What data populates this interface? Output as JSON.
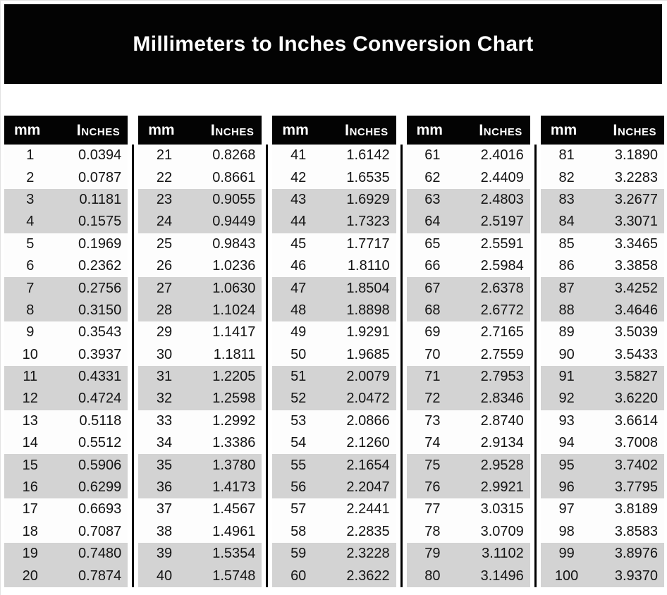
{
  "title": "Millimeters to Inches Conversion Chart",
  "header": {
    "mm_label": "mm",
    "inches_label": "Inches"
  },
  "colors": {
    "banner_bg": "#030303",
    "banner_text": "#ffffff",
    "header_bg": "#030303",
    "header_text": "#ffffff",
    "row_stripe": "#d3d3d3",
    "row_plain": "#fdfdfd",
    "divider": "#000000",
    "value_text": "#141414"
  },
  "chart_data": {
    "type": "table",
    "title": "Millimeters to Inches Conversion Chart",
    "columns": [
      "mm",
      "Inches"
    ],
    "layout": {
      "column_groups_count": 5,
      "rows_per_group": 20,
      "stripe_pattern": "alternating pairs shaded (rows 3-4, 7-8, 11-12, 15-16, 19-20 of each group)",
      "grid": "black vertical divider lines between column groups"
    },
    "column_groups": [
      {
        "rows": [
          [
            "1",
            "0.0394"
          ],
          [
            "2",
            "0.0787"
          ],
          [
            "3",
            "0.1181"
          ],
          [
            "4",
            "0.1575"
          ],
          [
            "5",
            "0.1969"
          ],
          [
            "6",
            "0.2362"
          ],
          [
            "7",
            "0.2756"
          ],
          [
            "8",
            "0.3150"
          ],
          [
            "9",
            "0.3543"
          ],
          [
            "10",
            "0.3937"
          ],
          [
            "11",
            "0.4331"
          ],
          [
            "12",
            "0.4724"
          ],
          [
            "13",
            "0.5118"
          ],
          [
            "14",
            "0.5512"
          ],
          [
            "15",
            "0.5906"
          ],
          [
            "16",
            "0.6299"
          ],
          [
            "17",
            "0.6693"
          ],
          [
            "18",
            "0.7087"
          ],
          [
            "19",
            "0.7480"
          ],
          [
            "20",
            "0.7874"
          ]
        ]
      },
      {
        "rows": [
          [
            "21",
            "0.8268"
          ],
          [
            "22",
            "0.8661"
          ],
          [
            "23",
            "0.9055"
          ],
          [
            "24",
            "0.9449"
          ],
          [
            "25",
            "0.9843"
          ],
          [
            "26",
            "1.0236"
          ],
          [
            "27",
            "1.0630"
          ],
          [
            "28",
            "1.1024"
          ],
          [
            "29",
            "1.1417"
          ],
          [
            "30",
            "1.1811"
          ],
          [
            "31",
            "1.2205"
          ],
          [
            "32",
            "1.2598"
          ],
          [
            "33",
            "1.2992"
          ],
          [
            "34",
            "1.3386"
          ],
          [
            "35",
            "1.3780"
          ],
          [
            "36",
            "1.4173"
          ],
          [
            "37",
            "1.4567"
          ],
          [
            "38",
            "1.4961"
          ],
          [
            "39",
            "1.5354"
          ],
          [
            "40",
            "1.5748"
          ]
        ]
      },
      {
        "rows": [
          [
            "41",
            "1.6142"
          ],
          [
            "42",
            "1.6535"
          ],
          [
            "43",
            "1.6929"
          ],
          [
            "44",
            "1.7323"
          ],
          [
            "45",
            "1.7717"
          ],
          [
            "46",
            "1.8110"
          ],
          [
            "47",
            "1.8504"
          ],
          [
            "48",
            "1.8898"
          ],
          [
            "49",
            "1.9291"
          ],
          [
            "50",
            "1.9685"
          ],
          [
            "51",
            "2.0079"
          ],
          [
            "52",
            "2.0472"
          ],
          [
            "53",
            "2.0866"
          ],
          [
            "54",
            "2.1260"
          ],
          [
            "55",
            "2.1654"
          ],
          [
            "56",
            "2.2047"
          ],
          [
            "57",
            "2.2441"
          ],
          [
            "58",
            "2.2835"
          ],
          [
            "59",
            "2.3228"
          ],
          [
            "60",
            "2.3622"
          ]
        ]
      },
      {
        "rows": [
          [
            "61",
            "2.4016"
          ],
          [
            "62",
            "2.4409"
          ],
          [
            "63",
            "2.4803"
          ],
          [
            "64",
            "2.5197"
          ],
          [
            "65",
            "2.5591"
          ],
          [
            "66",
            "2.5984"
          ],
          [
            "67",
            "2.6378"
          ],
          [
            "68",
            "2.6772"
          ],
          [
            "69",
            "2.7165"
          ],
          [
            "70",
            "2.7559"
          ],
          [
            "71",
            "2.7953"
          ],
          [
            "72",
            "2.8346"
          ],
          [
            "73",
            "2.8740"
          ],
          [
            "74",
            "2.9134"
          ],
          [
            "75",
            "2.9528"
          ],
          [
            "76",
            "2.9921"
          ],
          [
            "77",
            "3.0315"
          ],
          [
            "78",
            "3.0709"
          ],
          [
            "79",
            "3.1102"
          ],
          [
            "80",
            "3.1496"
          ]
        ]
      },
      {
        "rows": [
          [
            "81",
            "3.1890"
          ],
          [
            "82",
            "3.2283"
          ],
          [
            "83",
            "3.2677"
          ],
          [
            "84",
            "3.3071"
          ],
          [
            "85",
            "3.3465"
          ],
          [
            "86",
            "3.3858"
          ],
          [
            "87",
            "3.4252"
          ],
          [
            "88",
            "3.4646"
          ],
          [
            "89",
            "3.5039"
          ],
          [
            "90",
            "3.5433"
          ],
          [
            "91",
            "3.5827"
          ],
          [
            "92",
            "3.6220"
          ],
          [
            "93",
            "3.6614"
          ],
          [
            "94",
            "3.7008"
          ],
          [
            "95",
            "3.7402"
          ],
          [
            "96",
            "3.7795"
          ],
          [
            "97",
            "3.8189"
          ],
          [
            "98",
            "3.8583"
          ],
          [
            "99",
            "3.8976"
          ],
          [
            "100",
            "3.9370"
          ]
        ]
      }
    ]
  }
}
